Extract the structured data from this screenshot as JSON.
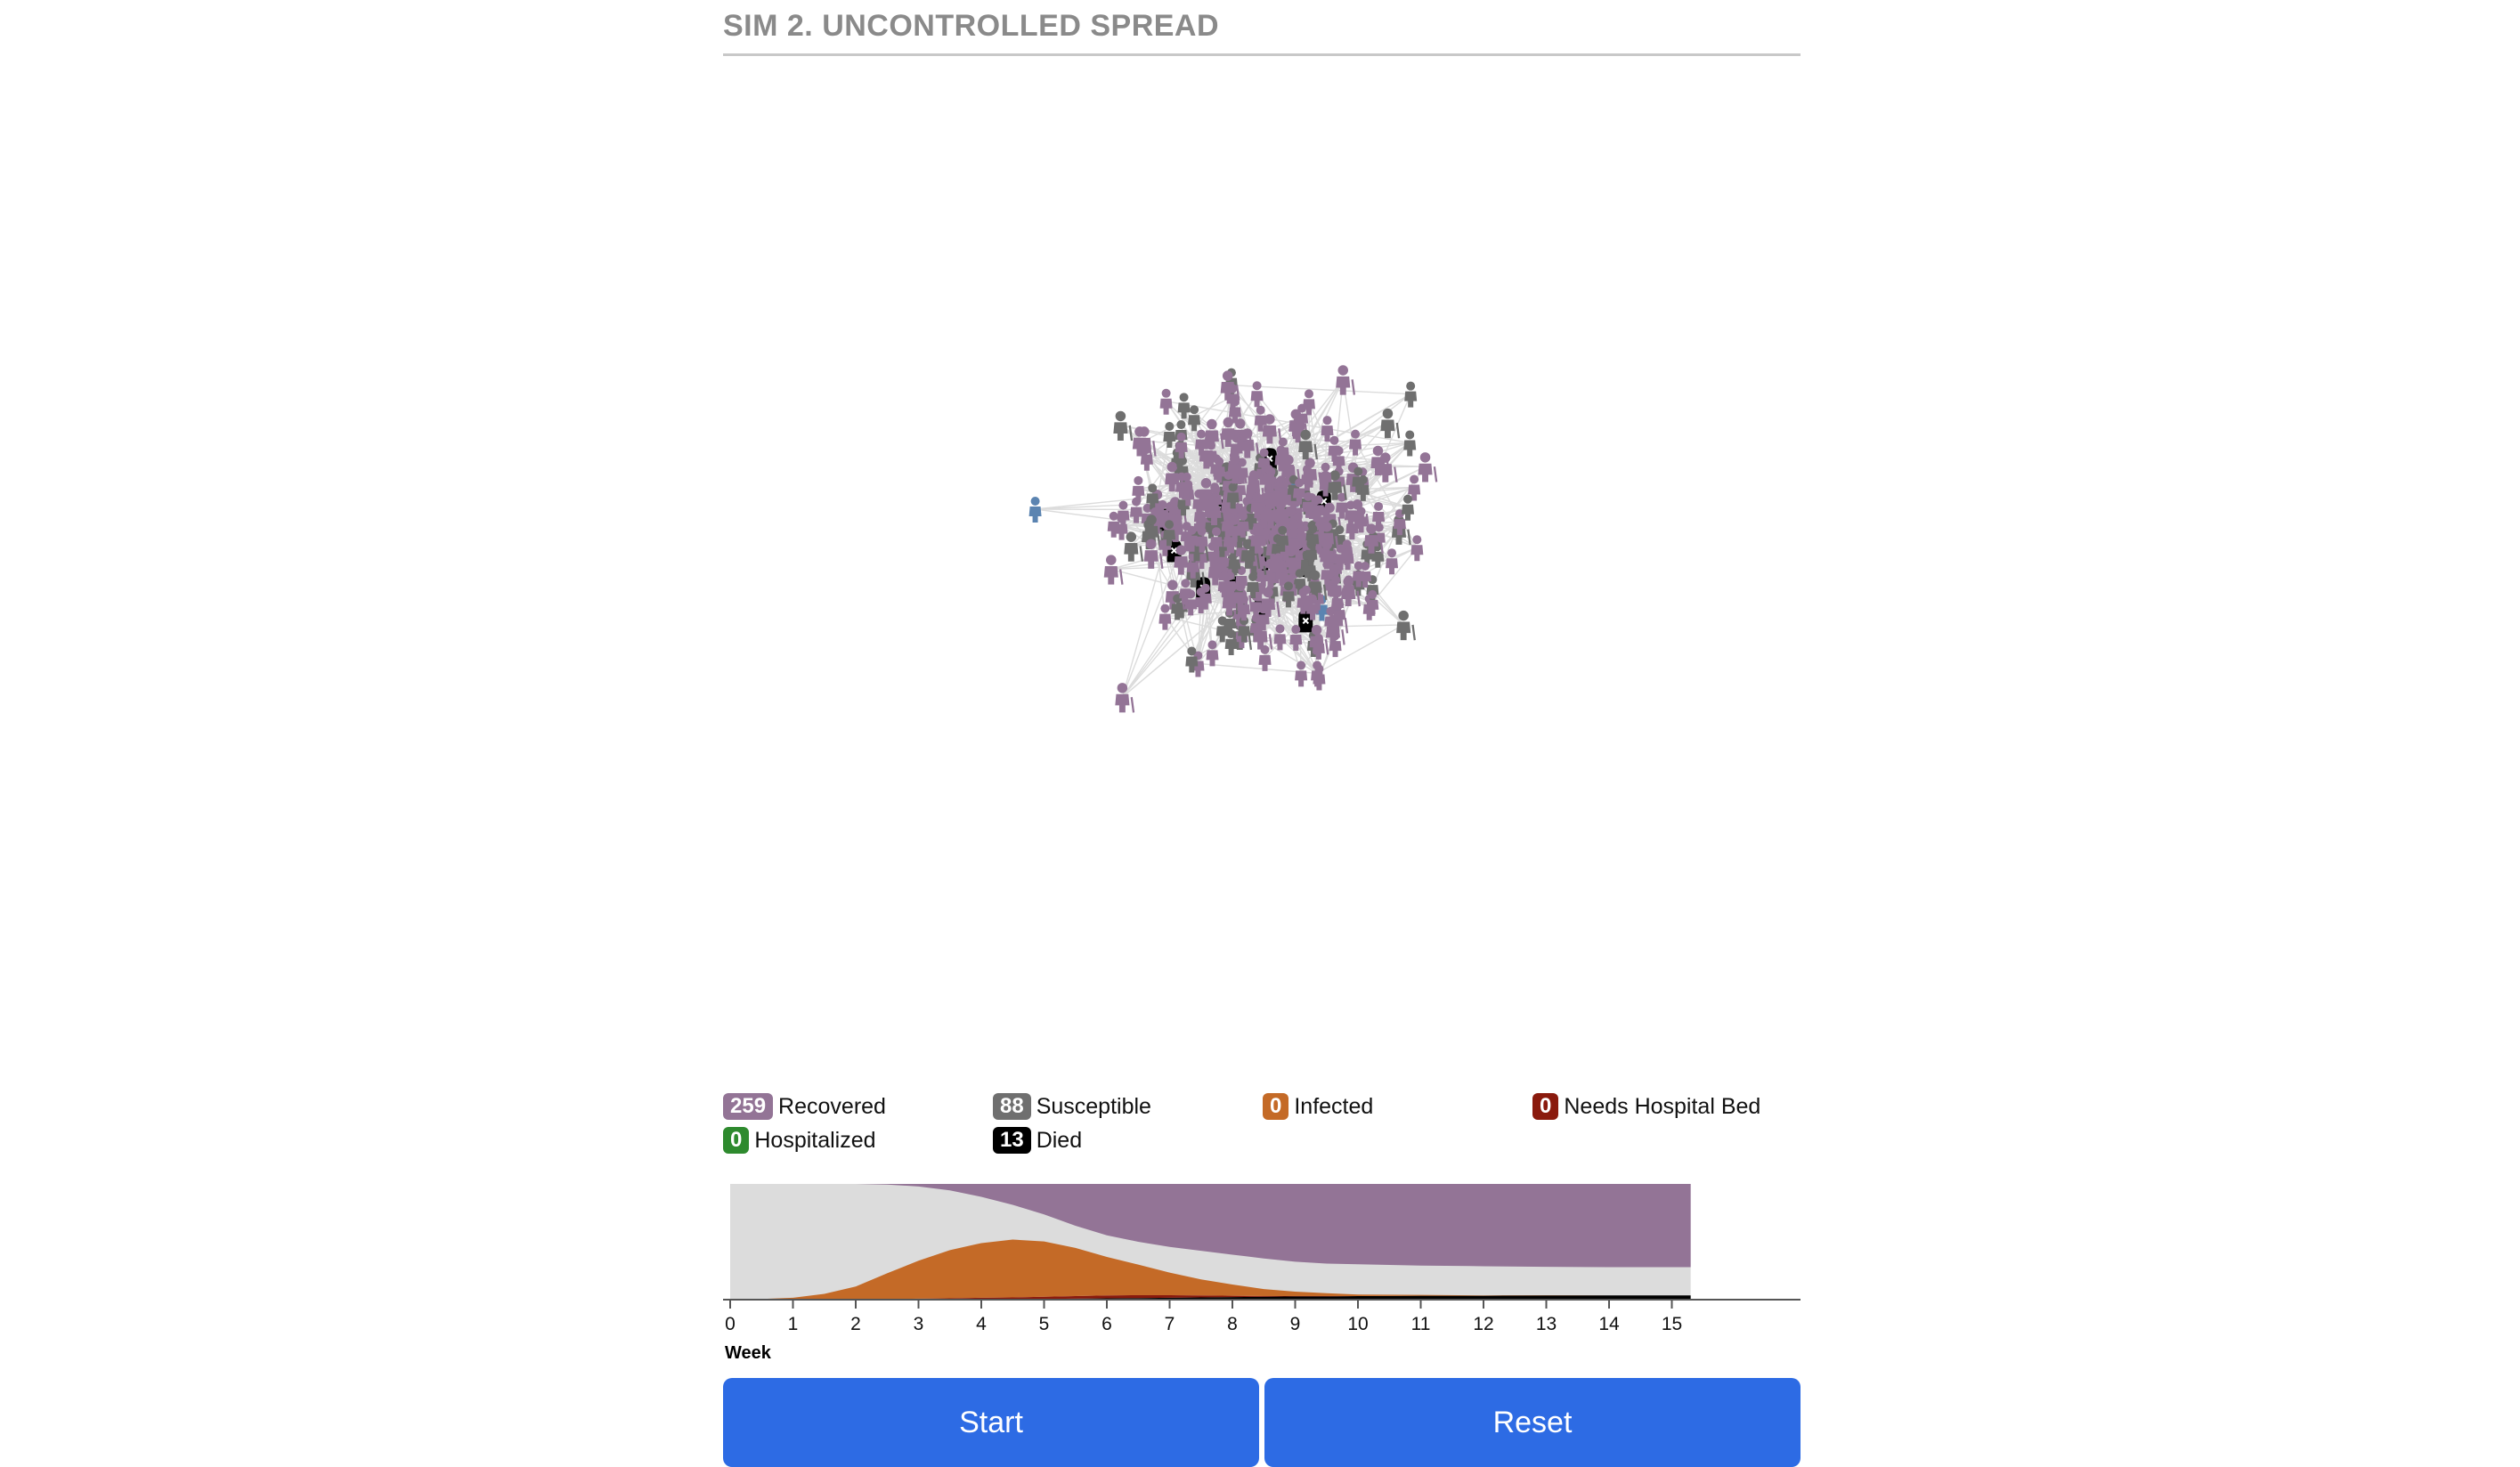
{
  "header": {
    "title": "SIM 2. UNCONTROLLED SPREAD"
  },
  "legend": [
    {
      "key": "recovered",
      "count": "259",
      "label": "Recovered",
      "color": "#937496"
    },
    {
      "key": "susceptible",
      "count": "88",
      "label": "Susceptible",
      "color": "#6f6f6f"
    },
    {
      "key": "infected",
      "count": "0",
      "label": "Infected",
      "color": "#c46a27"
    },
    {
      "key": "needs-hospital-bed",
      "count": "0",
      "label": "Needs Hospital Bed",
      "color": "#8a1a0d"
    },
    {
      "key": "hospitalized",
      "count": "0",
      "label": "Hospitalized",
      "color": "#2e8a2e"
    },
    {
      "key": "died",
      "count": "13",
      "label": "Died",
      "color": "#000000"
    }
  ],
  "colors": {
    "edge": "#dcdcdc",
    "recovered": "#937496",
    "susceptible": "#6f6f6f",
    "infected": "#c46a27",
    "hospital": "#8a1a0d",
    "hospitalized": "#2e8a2e",
    "died": "#000000",
    "blue_node": "#5b84b1",
    "chart_susceptible": "#dcdcdc",
    "button": "#2d6be4"
  },
  "chart_data": {
    "type": "area",
    "xlabel": "Week",
    "x_ticks": [
      "0",
      "1",
      "2",
      "3",
      "4",
      "5",
      "6",
      "7",
      "8",
      "9",
      "10",
      "11",
      "12",
      "13",
      "14",
      "15"
    ],
    "xlim": [
      0,
      17
    ],
    "ylim": [
      0,
      360
    ],
    "weeks": [
      0,
      0.5,
      1,
      1.5,
      2,
      2.5,
      3,
      3.5,
      4,
      4.5,
      5,
      5.5,
      6,
      6.5,
      7,
      7.5,
      8,
      8.5,
      9,
      9.5,
      10,
      11,
      12,
      13,
      14,
      15,
      15.3
    ],
    "series": [
      {
        "name": "Died",
        "values": [
          0,
          0,
          0,
          0,
          0,
          0,
          0,
          0,
          1,
          1,
          2,
          3,
          4,
          5,
          6,
          7,
          8,
          9,
          10,
          10,
          11,
          12,
          12,
          13,
          13,
          13,
          13
        ]
      },
      {
        "name": "Hospitalized",
        "values": [
          0,
          0,
          0,
          0,
          0,
          0,
          0,
          0,
          0,
          0,
          0,
          0,
          0,
          0,
          0,
          0,
          0,
          0,
          0,
          0,
          0,
          0,
          0,
          0,
          0,
          0,
          0
        ]
      },
      {
        "name": "Needs Hospital Bed",
        "values": [
          0,
          0,
          0,
          0,
          1,
          2,
          3,
          4,
          5,
          6,
          7,
          8,
          9,
          9,
          8,
          6,
          4,
          2,
          1,
          1,
          0,
          0,
          0,
          0,
          0,
          0,
          0
        ]
      },
      {
        "name": "Infected",
        "values": [
          0,
          2,
          6,
          18,
          40,
          80,
          118,
          150,
          170,
          180,
          172,
          150,
          120,
          95,
          70,
          50,
          35,
          22,
          14,
          9,
          5,
          3,
          1,
          1,
          0,
          0,
          0
        ]
      },
      {
        "name": "Recovered",
        "values": [
          0,
          0,
          0,
          0,
          0,
          2,
          8,
          20,
          40,
          65,
          95,
          130,
          160,
          180,
          196,
          208,
          220,
          232,
          242,
          248,
          250,
          254,
          256,
          258,
          259,
          259,
          259
        ]
      }
    ],
    "total": 360
  },
  "buttons": {
    "start": "Start",
    "reset": "Reset"
  }
}
